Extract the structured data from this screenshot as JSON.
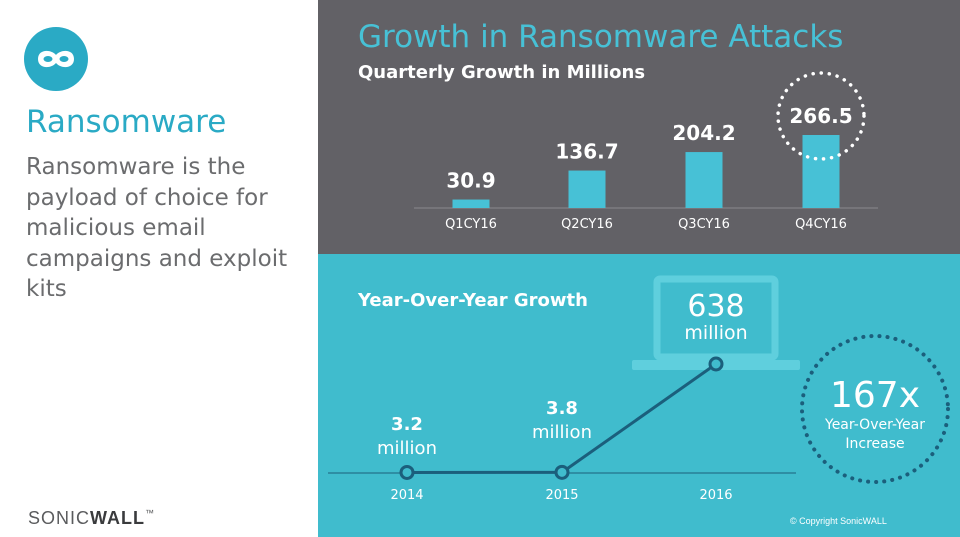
{
  "sidebar": {
    "logo_icon": "mask-icon",
    "title": "Ransomware",
    "body": "Ransomware is the payload of choice for malicious email campaigns and exploit kits",
    "brand_prefix": "SONIC",
    "brand_suffix": "WALL",
    "brand_mark": "™"
  },
  "colors": {
    "accent": "#2aaac5",
    "bar": "#47c1d6",
    "top_panel": "#626166",
    "bottom_panel": "#40bccd",
    "line": "#1b5f7c",
    "text_white": "#ffffff",
    "text_gray": "#6b6c6e"
  },
  "quarterly": {
    "title": "Growth in Ransomware Attacks",
    "subtitle": "Quarterly Growth in Millions"
  },
  "yoy": {
    "title": "Year-Over-Year Growth",
    "unit": "million",
    "laptop_icon": "laptop-icon",
    "increase_value": "167x",
    "increase_label_line1": "Year-Over-Year",
    "increase_label_line2": "Increase"
  },
  "footer": {
    "copyright": "© Copyright SonicWALL"
  },
  "chart_data": [
    {
      "type": "bar",
      "title": "Quarterly Growth in Millions",
      "categories": [
        "Q1CY16",
        "Q2CY16",
        "Q3CY16",
        "Q4CY16"
      ],
      "values": [
        30.9,
        136.7,
        204.2,
        266.5
      ],
      "value_labels": [
        "30.9",
        "136.7",
        "204.2",
        "266.5"
      ],
      "highlight_index": 3,
      "ylim": [
        0,
        266.5
      ],
      "grid": false
    },
    {
      "type": "line",
      "title": "Year-Over-Year Growth",
      "categories": [
        "2014",
        "2015",
        "2016"
      ],
      "values": [
        3.2,
        3.8,
        638
      ],
      "value_labels": [
        "3.2",
        "3.8",
        "638"
      ],
      "grid": false
    }
  ]
}
